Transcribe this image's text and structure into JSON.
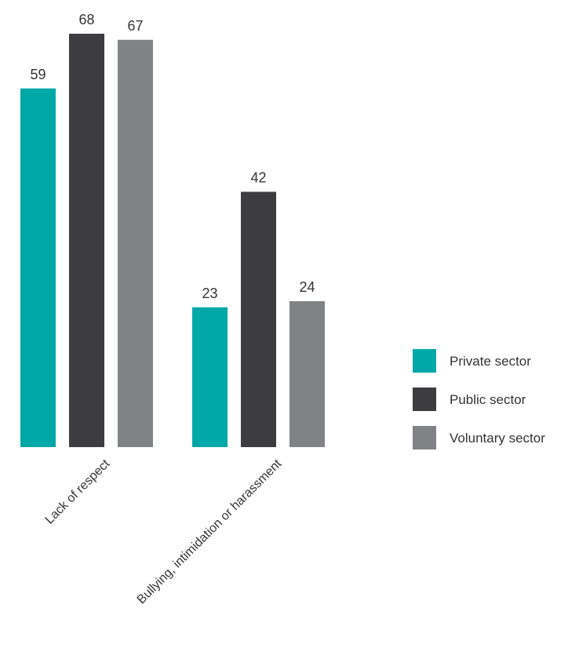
{
  "chart_data": {
    "type": "bar",
    "categories": [
      "Lack of respect",
      "Bullying, intimidation or harassment"
    ],
    "series": [
      {
        "name": "Private sector",
        "color": "#00a8a8",
        "values": [
          59,
          23
        ]
      },
      {
        "name": "Public sector",
        "color": "#3d3d3f",
        "values": [
          68,
          42
        ]
      },
      {
        "name": "Voluntary sector",
        "color": "#818285",
        "values": [
          67,
          24
        ]
      }
    ],
    "title": "",
    "xlabel": "",
    "ylabel": "",
    "ylim": [
      0,
      68
    ],
    "grid": false,
    "legend_position": "right",
    "data_labels": true
  }
}
